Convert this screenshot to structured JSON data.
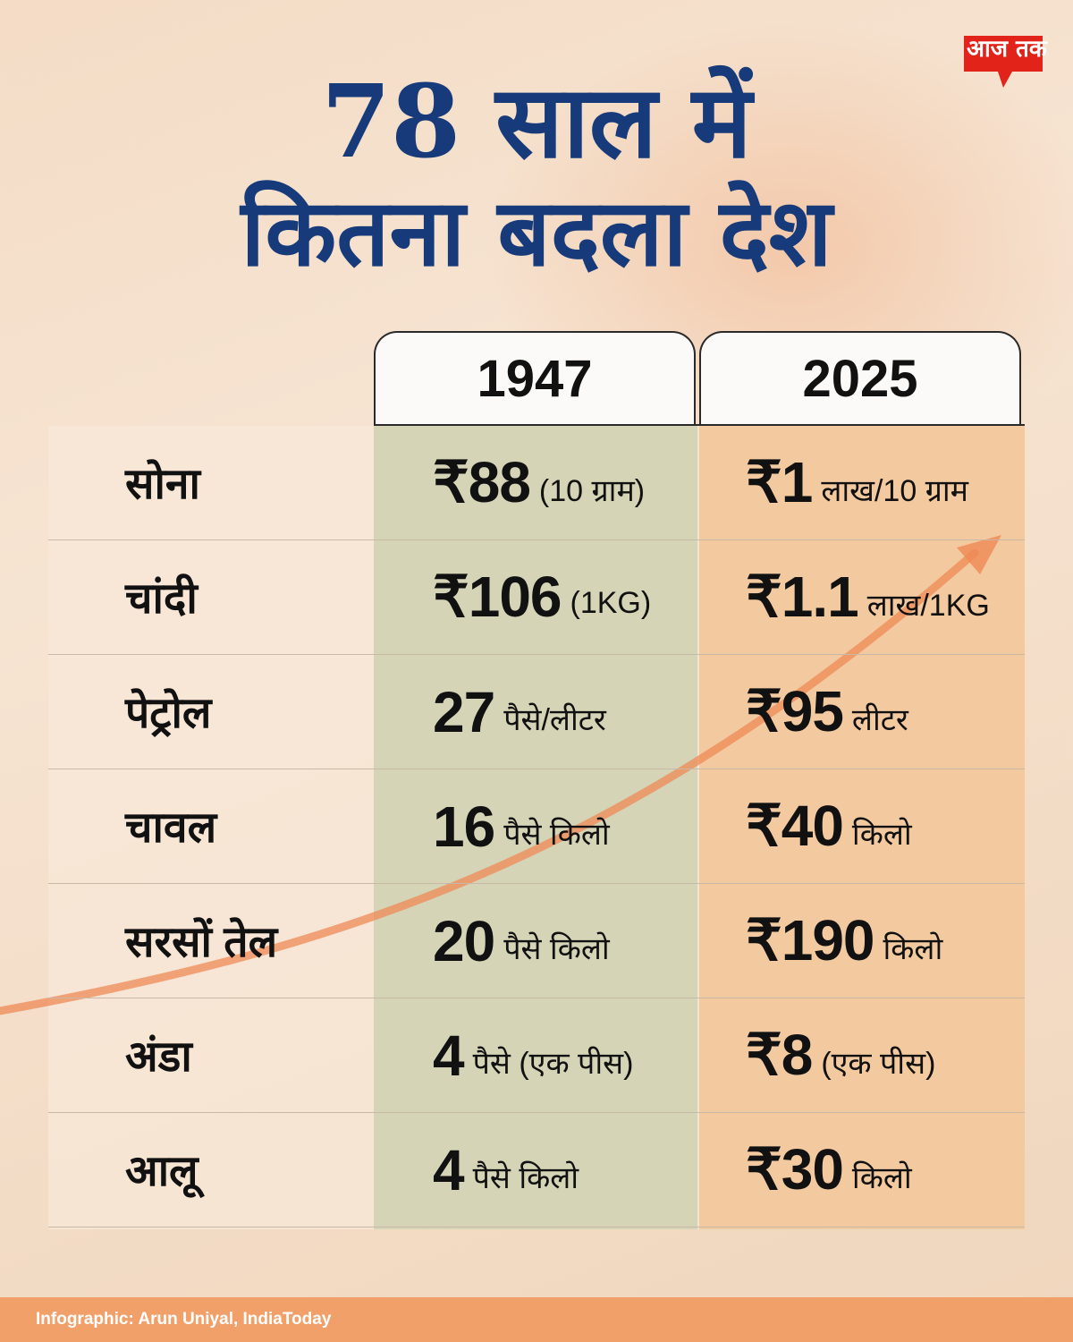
{
  "brand": {
    "logo_text": "आज तक",
    "logo_color": "#e2231a"
  },
  "title": {
    "line1": "78 साल में",
    "line2": "कितना बदला देश"
  },
  "columns": {
    "left_year": "1947",
    "right_year": "2025"
  },
  "rows": [
    {
      "item": "सोना",
      "v1947": "₹88",
      "u1947": "(10 ग्राम)",
      "v2025": "₹1",
      "u2025": "लाख/10 ग्राम"
    },
    {
      "item": "चांदी",
      "v1947": "₹106",
      "u1947": "(1KG)",
      "v2025": "₹1.1",
      "u2025": "लाख/1KG"
    },
    {
      "item": "पेट्रोल",
      "v1947": "27",
      "u1947": "पैसे/लीटर",
      "v2025": "₹95",
      "u2025": "लीटर"
    },
    {
      "item": "चावल",
      "v1947": "16",
      "u1947": "पैसे किलो",
      "v2025": "₹40",
      "u2025": "किलो"
    },
    {
      "item": "सरसों तेल",
      "v1947": "20",
      "u1947": "पैसे किलो",
      "v2025": "₹190",
      "u2025": "किलो"
    },
    {
      "item": "अंडा",
      "v1947": "4",
      "u1947": "पैसे (एक पीस)",
      "v2025": "₹8",
      "u2025": "(एक पीस)"
    },
    {
      "item": "आलू",
      "v1947": "4",
      "u1947": "पैसे किलो",
      "v2025": "₹30",
      "u2025": "किलो"
    }
  ],
  "footer": {
    "credit": "Infographic: Arun Uniyal, IndiaToday"
  },
  "colors": {
    "title": "#163a7a",
    "col_1947": "#d5d4b7",
    "col_2025": "#f3c9a0",
    "footer": "#f1a06a",
    "arrow": "#ef8a55"
  }
}
